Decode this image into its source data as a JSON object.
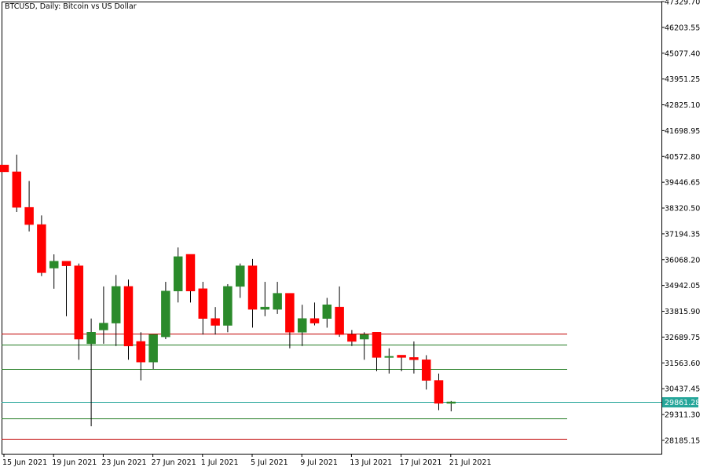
{
  "chart_data": {
    "type": "candlestick",
    "title": "BTCUSD, Daily:  Bitcoin vs US Dollar",
    "current_price": "29861.28",
    "colors": {
      "bull": "#2b8a2b",
      "bear": "#ff0000",
      "wick": "#000000",
      "grid": "#000000",
      "price_line": "#26a69a",
      "price_tag_bg": "#26a69a",
      "resistance_line": "#c00000",
      "support_line": "#1f7a1f"
    },
    "y_ticks": [
      "47329.70",
      "46203.55",
      "45077.40",
      "43951.25",
      "42825.10",
      "41698.95",
      "40572.80",
      "39446.65",
      "38320.50",
      "37194.35",
      "36068.20",
      "34942.05",
      "33815.90",
      "32689.75",
      "31563.60",
      "30437.45",
      "29311.30",
      "28185.15"
    ],
    "ylim": [
      27600,
      47329.7
    ],
    "x_ticks": [
      "15 Jun 2021",
      "19 Jun 2021",
      "23 Jun 2021",
      "27 Jun 2021",
      "1 Jul 2021",
      "5 Jul 2021",
      "9 Jul 2021",
      "13 Jul 2021",
      "17 Jul 2021",
      "21 Jul 2021"
    ],
    "candles": [
      {
        "date": "15 Jun 2021",
        "open": 40200,
        "high": 40200,
        "low": 39900,
        "close": 39900
      },
      {
        "date": "16 Jun 2021",
        "open": 39900,
        "high": 40650,
        "low": 38150,
        "close": 38350
      },
      {
        "date": "17 Jun 2021",
        "open": 38350,
        "high": 39500,
        "low": 37300,
        "close": 37600
      },
      {
        "date": "18 Jun 2021",
        "open": 37600,
        "high": 38000,
        "low": 35350,
        "close": 35500
      },
      {
        "date": "19 Jun 2021",
        "open": 35700,
        "high": 36300,
        "low": 34800,
        "close": 36000
      },
      {
        "date": "20 Jun 2021",
        "open": 36000,
        "high": 36000,
        "low": 33600,
        "close": 35800
      },
      {
        "date": "21 Jun 2021",
        "open": 35800,
        "high": 35900,
        "low": 31700,
        "close": 32600
      },
      {
        "date": "22 Jun 2021",
        "open": 32400,
        "high": 33500,
        "low": 28800,
        "close": 32900
      },
      {
        "date": "23 Jun 2021",
        "open": 33000,
        "high": 34900,
        "low": 32400,
        "close": 33300
      },
      {
        "date": "24 Jun 2021",
        "open": 33300,
        "high": 35400,
        "low": 32300,
        "close": 34900
      },
      {
        "date": "25 Jun 2021",
        "open": 34900,
        "high": 35200,
        "low": 31700,
        "close": 32300
      },
      {
        "date": "26 Jun 2021",
        "open": 32500,
        "high": 32900,
        "low": 30800,
        "close": 31600
      },
      {
        "date": "27 Jun 2021",
        "open": 31600,
        "high": 32800,
        "low": 31300,
        "close": 32800
      },
      {
        "date": "28 Jun 2021",
        "open": 32700,
        "high": 35100,
        "low": 32600,
        "close": 34700
      },
      {
        "date": "29 Jun 2021",
        "open": 34700,
        "high": 36600,
        "low": 34200,
        "close": 36200
      },
      {
        "date": "30 Jun 2021",
        "open": 36300,
        "high": 36300,
        "low": 34200,
        "close": 34700
      },
      {
        "date": "1 Jul 2021",
        "open": 34800,
        "high": 35100,
        "low": 32800,
        "close": 33500
      },
      {
        "date": "2 Jul 2021",
        "open": 33500,
        "high": 34000,
        "low": 32800,
        "close": 33200
      },
      {
        "date": "3 Jul 2021",
        "open": 33200,
        "high": 35000,
        "low": 32900,
        "close": 34900
      },
      {
        "date": "4 Jul 2021",
        "open": 34900,
        "high": 35900,
        "low": 34400,
        "close": 35800
      },
      {
        "date": "5 Jul 2021",
        "open": 35800,
        "high": 36100,
        "low": 33100,
        "close": 33900
      },
      {
        "date": "6 Jul 2021",
        "open": 33900,
        "high": 35100,
        "low": 33600,
        "close": 34000
      },
      {
        "date": "7 Jul 2021",
        "open": 33900,
        "high": 35100,
        "low": 33700,
        "close": 34600
      },
      {
        "date": "8 Jul 2021",
        "open": 34600,
        "high": 34600,
        "low": 32200,
        "close": 32900
      },
      {
        "date": "9 Jul 2021",
        "open": 32900,
        "high": 34100,
        "low": 32300,
        "close": 33500
      },
      {
        "date": "10 Jul 2021",
        "open": 33500,
        "high": 34200,
        "low": 33200,
        "close": 33300
      },
      {
        "date": "11 Jul 2021",
        "open": 33500,
        "high": 34400,
        "low": 33100,
        "close": 34100
      },
      {
        "date": "12 Jul 2021",
        "open": 34000,
        "high": 34900,
        "low": 32700,
        "close": 32800
      },
      {
        "date": "13 Jul 2021",
        "open": 32800,
        "high": 33000,
        "low": 32300,
        "close": 32500
      },
      {
        "date": "14 Jul 2021",
        "open": 32600,
        "high": 32900,
        "low": 31700,
        "close": 32800
      },
      {
        "date": "15 Jul 2021",
        "open": 32900,
        "high": 32900,
        "low": 31200,
        "close": 31800
      },
      {
        "date": "16 Jul 2021",
        "open": 31800,
        "high": 32200,
        "low": 31100,
        "close": 31850
      },
      {
        "date": "17 Jul 2021",
        "open": 31900,
        "high": 31900,
        "low": 31200,
        "close": 31800
      },
      {
        "date": "18 Jul 2021",
        "open": 31800,
        "high": 32500,
        "low": 31100,
        "close": 31700
      },
      {
        "date": "19 Jul 2021",
        "open": 31700,
        "high": 31900,
        "low": 30400,
        "close": 30800
      },
      {
        "date": "20 Jul 2021",
        "open": 30800,
        "high": 31100,
        "low": 29500,
        "close": 29800
      },
      {
        "date": "21 Jul 2021",
        "open": 29800,
        "high": 29900,
        "low": 29450,
        "close": 29861.28
      }
    ],
    "horizontal_lines": [
      {
        "price": 32840,
        "kind": "resistance"
      },
      {
        "price": 32350,
        "kind": "support"
      },
      {
        "price": 31300,
        "kind": "support"
      },
      {
        "price": 29150,
        "kind": "support"
      },
      {
        "price": 28250,
        "kind": "resistance"
      }
    ]
  }
}
